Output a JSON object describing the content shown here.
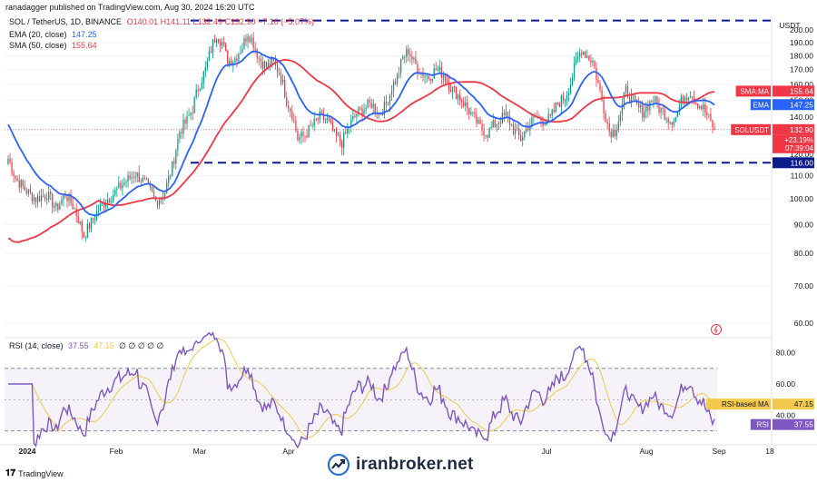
{
  "header": {
    "publish_line": "ranadagger published on TradingView.com, Aug 30, 2024 16:20 UTC"
  },
  "legend": {
    "symbol": "SOL / TetherUS, 1D, BINANCE",
    "ohlc": "O140.01 H141.11 L132.49 C132.90 −7.10 (−5.07%)",
    "ema_label": "EMA (20, close)",
    "ema_value": "147.25",
    "sma_label": "SMA (50, close)",
    "sma_value": "155.64",
    "rsi_label": "RSI (14, close)",
    "rsi_value": "37.55",
    "rsi_ma_value": "47.15",
    "rsi_extra": "∅ ∅ ∅ ∅ ∅"
  },
  "price_scale": {
    "currency": "USDT",
    "ticks": [
      200,
      190,
      180,
      170,
      160,
      150,
      140,
      130,
      120,
      110,
      100,
      90,
      80,
      70,
      60
    ],
    "tick_labels": [
      "200.00",
      "190.00",
      "180.00",
      "170.00",
      "160.00",
      "150.00",
      "140.00",
      "130.00",
      "120.00",
      "110.00",
      "100.00",
      "90.00",
      "80.00",
      "70.00",
      "60.00"
    ]
  },
  "rsi_scale": {
    "ticks": [
      80,
      60,
      40
    ],
    "tick_labels": [
      "80.00",
      "60.00",
      "40.00"
    ]
  },
  "time_axis": {
    "labels": [
      "2024",
      "Feb",
      "Mar",
      "Apr",
      "Jul",
      "Aug",
      "Sep",
      "18"
    ]
  },
  "price_tags": {
    "sma": {
      "label": "SMA:MA",
      "value": "155.64",
      "price": 155.64,
      "color": "#f23645"
    },
    "ema": {
      "label": "EMA",
      "value": "147.25",
      "price": 147.25,
      "color": "#2962ff"
    },
    "last": {
      "label": "SOLUSDT",
      "value": "132.90",
      "change": "+23.19%",
      "countdown": "07:39:04",
      "price": 132.9,
      "color": "#f23645"
    },
    "support": {
      "value": "116.00",
      "price": 116,
      "color": "#0c1a8c"
    }
  },
  "rsi_tags": {
    "ma": {
      "label": "RSI-based MA",
      "value": "47.15",
      "rsi": 47.15
    },
    "rsi": {
      "label": "RSI",
      "value": "37.55",
      "rsi": 37.55
    }
  },
  "watermark": {
    "text": "iranbroker.net"
  },
  "brand": {
    "text": "TradingView"
  },
  "chart_data": {
    "type": "candlestick",
    "symbol": "SOLUSDT",
    "timeframe": "1D",
    "period": "Jan 2024 – Aug 30, 2024",
    "ylim": [
      57,
      210
    ],
    "y_scale": "log",
    "levels": [
      {
        "name": "resistance",
        "price": 208
      },
      {
        "name": "support",
        "price": 116
      }
    ],
    "series": [
      {
        "name": "EMA (20, close)",
        "color": "#2962ff",
        "last": 147.25
      },
      {
        "name": "SMA (50, close)",
        "color": "#f23645",
        "last": 155.64
      }
    ],
    "anchors": [
      [
        1,
        118
      ],
      [
        5,
        109
      ],
      [
        10,
        104
      ],
      [
        16,
        100
      ],
      [
        22,
        102
      ],
      [
        27,
        96
      ],
      [
        32,
        102
      ],
      [
        37,
        96
      ],
      [
        42,
        86
      ],
      [
        47,
        92
      ],
      [
        52,
        98
      ],
      [
        58,
        102
      ],
      [
        64,
        107
      ],
      [
        70,
        111
      ],
      [
        76,
        106
      ],
      [
        81,
        99
      ],
      [
        86,
        103
      ],
      [
        90,
        114
      ],
      [
        94,
        132
      ],
      [
        98,
        138
      ],
      [
        101,
        145
      ],
      [
        104,
        158
      ],
      [
        108,
        170
      ],
      [
        111,
        185
      ],
      [
        114,
        197
      ],
      [
        117,
        190
      ],
      [
        120,
        176
      ],
      [
        124,
        178
      ],
      [
        128,
        187
      ],
      [
        131,
        198
      ],
      [
        134,
        190
      ],
      [
        137,
        178
      ],
      [
        141,
        172
      ],
      [
        145,
        175
      ],
      [
        149,
        165
      ],
      [
        152,
        150
      ],
      [
        155,
        142
      ],
      [
        158,
        128
      ],
      [
        162,
        130
      ],
      [
        166,
        135
      ],
      [
        170,
        140
      ],
      [
        174,
        138
      ],
      [
        178,
        130
      ],
      [
        182,
        126
      ],
      [
        186,
        135
      ],
      [
        190,
        142
      ],
      [
        194,
        145
      ],
      [
        198,
        148
      ],
      [
        202,
        142
      ],
      [
        206,
        147
      ],
      [
        209,
        158
      ],
      [
        212,
        165
      ],
      [
        215,
        178
      ],
      [
        218,
        184
      ],
      [
        221,
        175
      ],
      [
        225,
        168
      ],
      [
        229,
        165
      ],
      [
        233,
        170
      ],
      [
        237,
        167
      ],
      [
        241,
        158
      ],
      [
        245,
        153
      ],
      [
        249,
        147
      ],
      [
        253,
        140
      ],
      [
        257,
        134
      ],
      [
        261,
        131
      ],
      [
        264,
        135
      ],
      [
        267,
        138
      ],
      [
        271,
        141
      ],
      [
        275,
        133
      ],
      [
        279,
        128
      ],
      [
        283,
        135
      ],
      [
        287,
        140
      ],
      [
        291,
        138
      ],
      [
        295,
        139
      ],
      [
        299,
        148
      ],
      [
        303,
        152
      ],
      [
        306,
        161
      ],
      [
        309,
        175
      ],
      [
        312,
        185
      ],
      [
        315,
        180
      ],
      [
        318,
        176
      ],
      [
        321,
        160
      ],
      [
        324,
        145
      ],
      [
        327,
        132
      ],
      [
        330,
        132
      ],
      [
        333,
        142
      ],
      [
        336,
        156
      ],
      [
        339,
        151
      ],
      [
        342,
        146
      ],
      [
        345,
        143
      ],
      [
        348,
        147
      ],
      [
        351,
        151
      ],
      [
        354,
        145
      ],
      [
        357,
        142
      ],
      [
        360,
        138
      ],
      [
        363,
        140
      ],
      [
        367,
        152
      ],
      [
        371,
        155
      ],
      [
        374,
        149
      ],
      [
        378,
        145
      ],
      [
        381,
        139
      ],
      [
        384,
        133
      ]
    ],
    "last_close": 132.9
  }
}
